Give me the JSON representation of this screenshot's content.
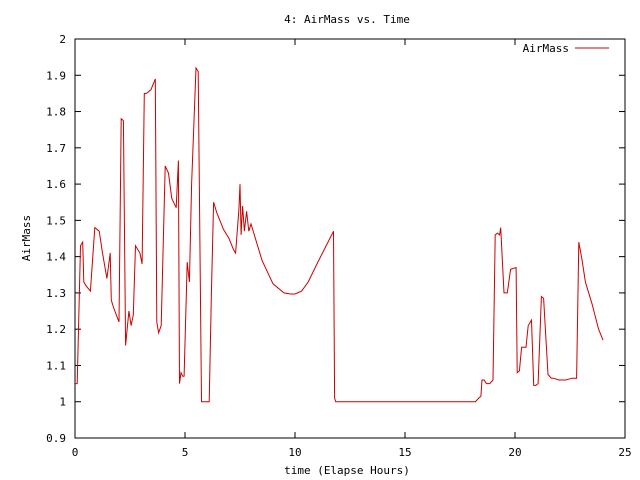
{
  "chart_data": {
    "type": "line",
    "title": "4: AirMass vs. Time",
    "xlabel": "time (Elapse Hours)",
    "ylabel": "AirMass",
    "xlim": [
      0,
      25
    ],
    "ylim": [
      0.9,
      2
    ],
    "xticks": [
      0,
      5,
      10,
      15,
      20,
      25
    ],
    "xtick_labels": [
      "0",
      "5",
      "10",
      "15",
      "20",
      "25"
    ],
    "yticks": [
      0.9,
      1,
      1.1,
      1.2,
      1.3,
      1.4,
      1.5,
      1.6,
      1.7,
      1.8,
      1.9,
      2
    ],
    "ytick_labels": [
      "0.9",
      "1",
      "1.1",
      "1.2",
      "1.3",
      "1.4",
      "1.5",
      "1.6",
      "1.7",
      "1.8",
      "1.9",
      "2"
    ],
    "grid": false,
    "legend_position": "top-right",
    "series_color": "#cc0000",
    "series": [
      {
        "name": "AirMass",
        "x": [
          0,
          0.1,
          0.25,
          0.35,
          0.4,
          0.5,
          0.7,
          0.9,
          1.1,
          1.25,
          1.45,
          1.6,
          1.65,
          1.75,
          2.0,
          2.1,
          2.2,
          2.3,
          2.45,
          2.55,
          2.65,
          2.75,
          2.95,
          3.05,
          3.15,
          3.25,
          3.45,
          3.65,
          3.72,
          3.8,
          3.92,
          4.1,
          4.25,
          4.4,
          4.6,
          4.7,
          4.75,
          4.82,
          4.9,
          4.96,
          5.1,
          5.2,
          5.3,
          5.5,
          5.6,
          5.75,
          5.85,
          6.1,
          6.2,
          6.3,
          6.45,
          6.75,
          7.0,
          7.2,
          7.3,
          7.45,
          7.5,
          7.55,
          7.62,
          7.7,
          7.8,
          7.9,
          8.0,
          8.5,
          9.0,
          9.5,
          9.8,
          10.0,
          10.3,
          10.6,
          11.0,
          11.5,
          11.75,
          11.8,
          11.85,
          12.0,
          13.0,
          14.0,
          15.0,
          16.0,
          17.0,
          18.0,
          18.2,
          18.35,
          18.45,
          18.5,
          18.6,
          18.7,
          18.85,
          19.0,
          19.1,
          19.2,
          19.3,
          19.35,
          19.5,
          19.6,
          19.65,
          19.8,
          20.05,
          20.1,
          20.2,
          20.3,
          20.5,
          20.6,
          20.75,
          20.85,
          20.95,
          21.05,
          21.2,
          21.3,
          21.5,
          21.65,
          21.75,
          22.0,
          22.3,
          22.6,
          22.8,
          22.9,
          23.05,
          23.2,
          23.5,
          23.8,
          24.0
        ],
        "y": [
          1.05,
          1.05,
          1.43,
          1.44,
          1.33,
          1.32,
          1.305,
          1.48,
          1.47,
          1.41,
          1.34,
          1.41,
          1.28,
          1.26,
          1.22,
          1.78,
          1.775,
          1.155,
          1.25,
          1.21,
          1.24,
          1.43,
          1.41,
          1.38,
          1.85,
          1.85,
          1.86,
          1.89,
          1.22,
          1.19,
          1.21,
          1.65,
          1.63,
          1.56,
          1.535,
          1.665,
          1.05,
          1.08,
          1.07,
          1.07,
          1.385,
          1.33,
          1.6,
          1.92,
          1.91,
          1.0,
          1.0,
          1.0,
          1.3,
          1.55,
          1.52,
          1.475,
          1.45,
          1.42,
          1.41,
          1.53,
          1.6,
          1.46,
          1.54,
          1.47,
          1.525,
          1.47,
          1.49,
          1.39,
          1.325,
          1.3,
          1.297,
          1.297,
          1.305,
          1.33,
          1.38,
          1.44,
          1.47,
          1.01,
          1.0,
          1.0,
          1.0,
          1.0,
          1.0,
          1.0,
          1.0,
          1.0,
          1.0,
          1.01,
          1.015,
          1.06,
          1.06,
          1.05,
          1.05,
          1.06,
          1.46,
          1.465,
          1.46,
          1.48,
          1.3,
          1.3,
          1.3,
          1.365,
          1.37,
          1.08,
          1.085,
          1.15,
          1.15,
          1.21,
          1.225,
          1.045,
          1.045,
          1.05,
          1.29,
          1.285,
          1.075,
          1.065,
          1.065,
          1.06,
          1.06,
          1.065,
          1.065,
          1.44,
          1.39,
          1.33,
          1.27,
          1.2,
          1.17
        ]
      }
    ]
  }
}
